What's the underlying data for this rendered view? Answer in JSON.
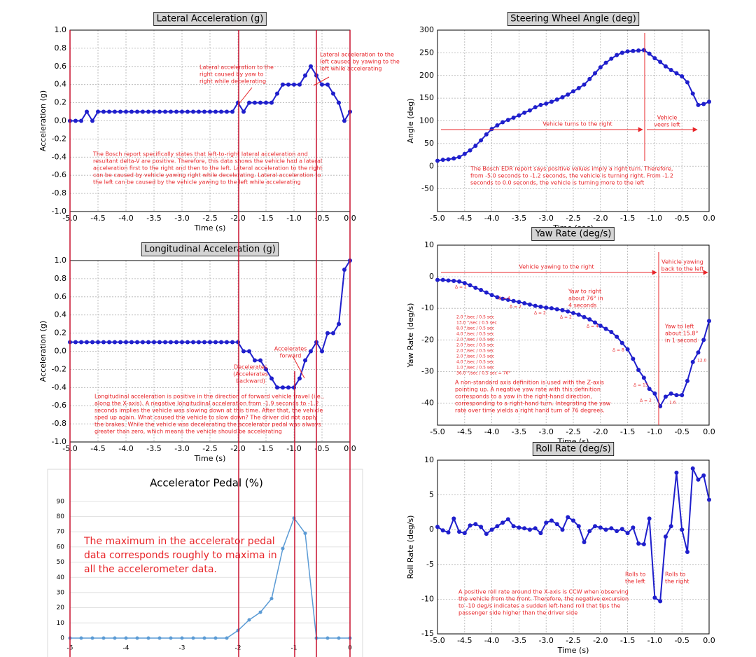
{
  "chart_data": [
    {
      "type": "line",
      "title": "Lateral Acceleration (g)",
      "xlabel": "Time (s)",
      "ylabel": "Acceleration (g)",
      "color": "#1f1fcc",
      "grid": true,
      "xlim": [
        -5,
        0
      ],
      "ylim": [
        -1,
        1
      ],
      "xticks": [
        {
          "value": -5,
          "label": "-5.0"
        },
        -4.5,
        {
          "value": -4,
          "label": "-4.0"
        },
        -3.5,
        {
          "value": -3,
          "label": "-3.0"
        },
        -2.5,
        {
          "value": -2,
          "label": "-2.0"
        },
        -1.5,
        {
          "value": -1,
          "label": "-1.0"
        },
        -0.5,
        {
          "value": 0,
          "label": "0.0"
        }
      ],
      "yticks": [
        {
          "value": -1,
          "label": "-1.0"
        },
        -0.8,
        -0.6,
        -0.4,
        -0.2,
        {
          "value": 0,
          "label": "0.0"
        },
        0.2,
        0.4,
        0.6,
        0.8,
        {
          "value": 1,
          "label": "1.0"
        }
      ],
      "x": [
        -5,
        -4.9,
        -4.8,
        -4.7,
        -4.6,
        -4.5,
        -4.4,
        -4.3,
        -4.2,
        -4.1,
        -4,
        -3.9,
        -3.8,
        -3.7,
        -3.6,
        -3.5,
        -3.4,
        -3.3,
        -3.2,
        -3.1,
        -3,
        -2.9,
        -2.8,
        -2.7,
        -2.6,
        -2.5,
        -2.4,
        -2.3,
        -2.2,
        -2.1,
        -2,
        -1.9,
        -1.8,
        -1.7,
        -1.6,
        -1.5,
        -1.4,
        -1.3,
        -1.2,
        -1.1,
        -1,
        -0.9,
        -0.8,
        -0.7,
        -0.6,
        -0.5,
        -0.4,
        -0.3,
        -0.2,
        -0.1,
        0
      ],
      "values": [
        0,
        0,
        0,
        0.1,
        0,
        0.1,
        0.1,
        0.1,
        0.1,
        0.1,
        0.1,
        0.1,
        0.1,
        0.1,
        0.1,
        0.1,
        0.1,
        0.1,
        0.1,
        0.1,
        0.1,
        0.1,
        0.1,
        0.1,
        0.1,
        0.1,
        0.1,
        0.1,
        0.1,
        0.1,
        0.2,
        0.1,
        0.2,
        0.2,
        0.2,
        0.2,
        0.2,
        0.3,
        0.4,
        0.4,
        0.4,
        0.4,
        0.5,
        0.6,
        0.5,
        0.4,
        0.4,
        0.3,
        0.2,
        0,
        0.1
      ],
      "annotations": [
        {
          "lines": [
            "Lateral acceleration to the",
            "right caused by yaw to",
            "right while decelerating"
          ]
        },
        {
          "lines": [
            "Lateral acceleration to the",
            "left caused by yawing to the",
            "left while accelerating"
          ]
        },
        {
          "lines": [
            "The Bosch report specifically states that left-to-right lateral acceleration and",
            "resultant delta-V are positive.  Therefore, this data shows the vehicle had a lateral",
            "acceleration first to the right and then to the left.  Lateral acceleration to the right",
            "can be caused by vehicle yawing right while decelerating.  Lateral acceleration to",
            "the left can be caused by the vehicle yawing to the left while accelerating"
          ]
        }
      ]
    },
    {
      "type": "line",
      "title": "Longitudinal Acceleration (g)",
      "xlabel": "Time (s)",
      "ylabel": "Acceleration (g)",
      "color": "#1f1fcc",
      "grid": true,
      "xlim": [
        -5,
        0
      ],
      "ylim": [
        -1,
        1
      ],
      "xticks": [
        {
          "value": -5,
          "label": "-5.0"
        },
        -4.5,
        {
          "value": -4,
          "label": "-4.0"
        },
        -3.5,
        {
          "value": -3,
          "label": "-3.0"
        },
        -2.5,
        {
          "value": -2,
          "label": "-2.0"
        },
        -1.5,
        {
          "value": -1,
          "label": "-1.0"
        },
        -0.5,
        {
          "value": 0,
          "label": "0.0"
        }
      ],
      "yticks": [
        {
          "value": -1,
          "label": "-1.0"
        },
        -0.8,
        -0.6,
        -0.4,
        -0.2,
        {
          "value": 0,
          "label": "0.0"
        },
        0.2,
        0.4,
        0.6,
        0.8,
        {
          "value": 1,
          "label": "1.0"
        }
      ],
      "x": [
        -5,
        -4.9,
        -4.8,
        -4.7,
        -4.6,
        -4.5,
        -4.4,
        -4.3,
        -4.2,
        -4.1,
        -4,
        -3.9,
        -3.8,
        -3.7,
        -3.6,
        -3.5,
        -3.4,
        -3.3,
        -3.2,
        -3.1,
        -3,
        -2.9,
        -2.8,
        -2.7,
        -2.6,
        -2.5,
        -2.4,
        -2.3,
        -2.2,
        -2.1,
        -2,
        -1.9,
        -1.8,
        -1.7,
        -1.6,
        -1.5,
        -1.4,
        -1.3,
        -1.2,
        -1.1,
        -1,
        -0.9,
        -0.8,
        -0.7,
        -0.6,
        -0.5,
        -0.4,
        -0.3,
        -0.2,
        -0.1,
        0
      ],
      "values": [
        0.1,
        0.1,
        0.1,
        0.1,
        0.1,
        0.1,
        0.1,
        0.1,
        0.1,
        0.1,
        0.1,
        0.1,
        0.1,
        0.1,
        0.1,
        0.1,
        0.1,
        0.1,
        0.1,
        0.1,
        0.1,
        0.1,
        0.1,
        0.1,
        0.1,
        0.1,
        0.1,
        0.1,
        0.1,
        0.1,
        0.1,
        0,
        0,
        -0.1,
        -0.1,
        -0.2,
        -0.3,
        -0.4,
        -0.4,
        -0.4,
        -0.4,
        -0.3,
        -0.1,
        0,
        0.1,
        0,
        0.2,
        0.2,
        0.3,
        0.9,
        1
      ],
      "annotations": [
        {
          "lines": [
            "Accelerates",
            "forward"
          ]
        },
        {
          "lines": [
            "Decelerates",
            "(Accelerates",
            "backward)"
          ]
        },
        {
          "lines": [
            "Longitudinal acceleration is positive in the direction of forward vehicle travel (i.e.,",
            "along the X-axis).  A negative longitudinal acceleration from -1.9 seconds to -1.2",
            "seconds implies the vehicle was slowing down at this time.  After that, the vehicle",
            "sped up again.  What caused the vehicle to slow down?  The driver did not apply",
            "the brakes.  While the vehicle was decelerating the accelerator pedal was always",
            "greater than zero, which means the vehicle should be accelerating"
          ]
        }
      ]
    },
    {
      "type": "line",
      "title": "Accelerator Pedal (%)",
      "color": "#5b9bd5",
      "grid": "y",
      "xlim": [
        -5,
        0
      ],
      "ylim": [
        0,
        95
      ],
      "xticks": [
        -5,
        -4,
        -3,
        -2,
        -1,
        0
      ],
      "yticks": [
        0,
        10,
        20,
        30,
        40,
        50,
        60,
        70,
        80,
        90
      ],
      "x": [
        -5,
        -4.8,
        -4.6,
        -4.4,
        -4.2,
        -4,
        -3.8,
        -3.6,
        -3.4,
        -3.2,
        -3,
        -2.8,
        -2.6,
        -2.4,
        -2.2,
        -2,
        -1.8,
        -1.6,
        -1.4,
        -1.2,
        -1,
        -0.8,
        -0.6,
        -0.4,
        -0.2,
        0
      ],
      "values": [
        0,
        0,
        0,
        0,
        0,
        0,
        0,
        0,
        0,
        0,
        0,
        0,
        0,
        0,
        0,
        5,
        12,
        17,
        26,
        59,
        79,
        69,
        0,
        0,
        0,
        0
      ],
      "annotations": [
        {
          "lines": [
            "The maximum in the accelerator pedal",
            "data corresponds roughly to maxima in",
            "all the accelerometer data."
          ]
        }
      ]
    },
    {
      "type": "line",
      "title": "Steering Wheel Angle (deg)",
      "xlabel": "Time (sec)",
      "ylabel": "Angle (deg)",
      "color": "#1f1fcc",
      "grid": true,
      "xlim": [
        -5,
        0
      ],
      "ylim": [
        -100,
        300
      ],
      "xticks": [
        {
          "value": -5,
          "label": "-5.0"
        },
        -4.5,
        {
          "value": -4,
          "label": "-4.0"
        },
        -3.5,
        {
          "value": -3,
          "label": "-3.0"
        },
        -2.5,
        {
          "value": -2,
          "label": "-2.0"
        },
        -1.5,
        {
          "value": -1,
          "label": "-1.0"
        },
        -0.5,
        {
          "value": 0,
          "label": "0.0"
        }
      ],
      "yticks": [
        -50,
        0,
        50,
        100,
        150,
        200,
        250,
        300
      ],
      "x": [
        -5,
        -4.9,
        -4.8,
        -4.7,
        -4.6,
        -4.5,
        -4.4,
        -4.3,
        -4.2,
        -4.1,
        -4,
        -3.9,
        -3.8,
        -3.7,
        -3.6,
        -3.5,
        -3.4,
        -3.3,
        -3.2,
        -3.1,
        -3,
        -2.9,
        -2.8,
        -2.7,
        -2.6,
        -2.5,
        -2.4,
        -2.3,
        -2.2,
        -2.1,
        -2,
        -1.9,
        -1.8,
        -1.7,
        -1.6,
        -1.5,
        -1.4,
        -1.3,
        -1.2,
        -1.1,
        -1,
        -0.9,
        -0.8,
        -0.7,
        -0.6,
        -0.5,
        -0.4,
        -0.3,
        -0.2,
        -0.1,
        0
      ],
      "values": [
        12,
        14,
        15,
        17,
        20,
        27,
        35,
        45,
        57,
        70,
        82,
        90,
        97,
        102,
        107,
        112,
        118,
        123,
        130,
        135,
        138,
        142,
        147,
        152,
        158,
        165,
        172,
        180,
        192,
        205,
        218,
        228,
        237,
        245,
        250,
        253,
        254,
        255,
        256,
        248,
        238,
        230,
        220,
        212,
        205,
        198,
        185,
        160,
        135,
        137,
        142
      ],
      "annotations": [
        {
          "lines": [
            "Vehicle turns to the right"
          ]
        },
        {
          "lines": [
            "Vehicle",
            "veers left"
          ]
        },
        {
          "lines": [
            "The Bosch EDR report says positive values imply a right turn.  Therefore,",
            "from -5.0 seconds to -1.2 seconds, the vehicle is turning right.  From -1.2",
            "seconds to 0.0 seconds, the vehicle is turning more to the left"
          ]
        }
      ]
    },
    {
      "type": "line",
      "title": "Yaw Rate (deg/s)",
      "xlabel": "Time (s)",
      "ylabel": "Yaw Rate (deg/s)",
      "color": "#1f1fcc",
      "grid": true,
      "xlim": [
        -5,
        0
      ],
      "ylim": [
        -47,
        10
      ],
      "xticks": [
        {
          "value": -5,
          "label": "-5.0"
        },
        -4.5,
        {
          "value": -4,
          "label": "-4.0"
        },
        -3.5,
        {
          "value": -3,
          "label": "-3.0"
        },
        -2.5,
        {
          "value": -2,
          "label": "-2.0"
        },
        -1.5,
        {
          "value": -1,
          "label": "-1.0"
        },
        -0.5,
        {
          "value": 0,
          "label": "0.0"
        }
      ],
      "yticks": [
        -40,
        -30,
        -20,
        -10,
        0,
        10
      ],
      "x": [
        -5,
        -4.9,
        -4.8,
        -4.7,
        -4.6,
        -4.5,
        -4.4,
        -4.3,
        -4.2,
        -4.1,
        -4,
        -3.9,
        -3.8,
        -3.7,
        -3.6,
        -3.5,
        -3.4,
        -3.3,
        -3.2,
        -3.1,
        -3,
        -2.9,
        -2.8,
        -2.7,
        -2.6,
        -2.5,
        -2.4,
        -2.3,
        -2.2,
        -2.1,
        -2,
        -1.9,
        -1.8,
        -1.7,
        -1.6,
        -1.5,
        -1.4,
        -1.3,
        -1.2,
        -1.1,
        -1,
        -0.9,
        -0.8,
        -0.7,
        -0.6,
        -0.5,
        -0.4,
        -0.3,
        -0.2,
        -0.1,
        0
      ],
      "values": [
        -1,
        -1,
        -1.2,
        -1.3,
        -1.5,
        -2,
        -2.7,
        -3.5,
        -4.2,
        -5,
        -5.8,
        -6.5,
        -7,
        -7.3,
        -7.7,
        -8,
        -8.4,
        -8.8,
        -9.2,
        -9.5,
        -9.8,
        -10,
        -10.3,
        -10.6,
        -11,
        -11.5,
        -12,
        -12.8,
        -13.5,
        -14.5,
        -15.5,
        -16.5,
        -17.5,
        -19,
        -21,
        -23,
        -26,
        -29.5,
        -32,
        -35.5,
        -37,
        -41,
        -38,
        -37,
        -37.5,
        -37.5,
        -33,
        -27,
        -24,
        -20,
        -14
      ],
      "annotations": [
        {
          "lines": [
            "Vehicle yawing to the right"
          ]
        },
        {
          "lines": [
            "Vehicle yawing",
            "back to the left"
          ]
        },
        {
          "lines": [
            "Yaw to right",
            "about 76° in",
            "4 seconds"
          ]
        },
        {
          "lines": [
            "Yaw to left",
            "about 15.8°",
            "in 1 second"
          ]
        },
        {
          "lines": [
            "A non-standard axis definition is used with the Z-axis",
            "pointing up.  A negative yaw rate with this definition",
            "corresponds to a yaw in the right-hand direction,",
            "corresponding to a right-hand turn.  Integrating the yaw",
            "rate over time yields a right hand turn of 76 degrees."
          ]
        },
        {
          "lines": [
            "2.0 °/sec / 0.5 sec",
            "13.0 °/sec / 0.5 sec",
            "8.0 °/sec / 0.5 sec",
            "4.0 °/sec / 0.5 sec",
            "2.0 °/sec / 0.5 sec",
            "2.0 °/sec / 0.5 sec",
            "2.0 °/sec / 0.5 sec",
            "2.0 °/sec / 0.5 sec",
            "4.0 °/sec / 0.5 sec",
            "1.0 °/sec / 0.5 sec",
            "36.0 °/sec / 0.5 sec = 76°"
          ]
        },
        {
          "lines": [
            "Δ = 1"
          ]
        },
        {
          "lines": [
            "Δ = 4"
          ]
        },
        {
          "lines": [
            "Δ = 2"
          ]
        },
        {
          "lines": [
            "Δ = 2"
          ]
        },
        {
          "lines": [
            "Δ = 2"
          ]
        },
        {
          "lines": [
            "Δ = 4"
          ]
        },
        {
          "lines": [
            "Δ = 8"
          ]
        },
        {
          "lines": [
            "Δ = 13"
          ]
        },
        {
          "lines": [
            "Δ = 2"
          ]
        },
        {
          "lines": [
            "1.6"
          ]
        },
        {
          "lines": [
            "12.0"
          ]
        }
      ]
    },
    {
      "type": "line",
      "title": "Roll Rate (deg/s)",
      "xlabel": "Time (s)",
      "ylabel": "Roll Rate (deg/s)",
      "color": "#1f1fcc",
      "grid": true,
      "xlim": [
        -5,
        0
      ],
      "ylim": [
        -15,
        10
      ],
      "xticks": [
        {
          "value": -5,
          "label": "-5.0"
        },
        -4.5,
        {
          "value": -4,
          "label": "-4.0"
        },
        -3.5,
        {
          "value": -3,
          "label": "-3.0"
        },
        -2.5,
        {
          "value": -2,
          "label": "-2.0"
        },
        -1.5,
        {
          "value": -1,
          "label": "-1.0"
        },
        -0.5,
        {
          "value": 0,
          "label": "0.0"
        }
      ],
      "yticks": [
        -15,
        -10,
        -5,
        0,
        5,
        10
      ],
      "x": [
        -5,
        -4.9,
        -4.8,
        -4.7,
        -4.6,
        -4.5,
        -4.4,
        -4.3,
        -4.2,
        -4.1,
        -4,
        -3.9,
        -3.8,
        -3.7,
        -3.6,
        -3.5,
        -3.4,
        -3.3,
        -3.2,
        -3.1,
        -3,
        -2.9,
        -2.8,
        -2.7,
        -2.6,
        -2.5,
        -2.4,
        -2.3,
        -2.2,
        -2.1,
        -2,
        -1.9,
        -1.8,
        -1.7,
        -1.6,
        -1.5,
        -1.4,
        -1.3,
        -1.2,
        -1.1,
        -1,
        -0.9,
        -0.8,
        -0.7,
        -0.6,
        -0.5,
        -0.4,
        -0.3,
        -0.2,
        -0.1,
        0
      ],
      "values": [
        0.4,
        -0.1,
        -0.4,
        1.6,
        -0.3,
        -0.5,
        0.6,
        0.8,
        0.4,
        -0.6,
        0,
        0.5,
        1,
        1.5,
        0.5,
        0.3,
        0.2,
        0,
        0.2,
        -0.5,
        1,
        1.3,
        0.8,
        0,
        1.8,
        1.3,
        0.5,
        -1.8,
        -0.2,
        0.5,
        0.3,
        0,
        0.2,
        -0.2,
        0.1,
        -0.5,
        0.3,
        -2,
        -2.1,
        1.6,
        -9.8,
        -10.3,
        -1,
        0.5,
        8.2,
        0,
        -3.2,
        8.8,
        7.2,
        7.8,
        4.3
      ],
      "annotations": [
        {
          "lines": [
            "Rolls to",
            "the left"
          ]
        },
        {
          "lines": [
            "Rolls to",
            "the right"
          ]
        },
        {
          "lines": [
            "A positive roll rate around the X-axis is CCW when observing",
            "the vehicle from the front.  Therefore, the negative excursion",
            "to -10 deg/s indicates a sudden left-hand roll that tips the",
            "passenger side higher than the driver side"
          ]
        }
      ]
    }
  ]
}
